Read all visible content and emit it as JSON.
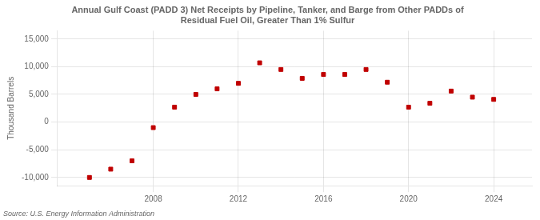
{
  "chart_data": {
    "type": "scatter",
    "title": [
      "Annual Gulf Coast (PADD 3) Net Receipts by Pipeline, Tanker, and Barge from Other PADDs of",
      "Residual Fuel Oil, Greater Than 1% Sulfur"
    ],
    "ylabel": "Thousand Barrels",
    "annotations": [
      "Source: U.S. Energy Information Administration"
    ],
    "x": [
      2005,
      2006,
      2007,
      2008,
      2009,
      2010,
      2011,
      2012,
      2013,
      2014,
      2015,
      2016,
      2017,
      2018,
      2019,
      2020,
      2021,
      2022,
      2023,
      2024
    ],
    "values": [
      -10000,
      -8500,
      -7000,
      -1000,
      2700,
      5000,
      6000,
      7000,
      10700,
      9500,
      7900,
      8600,
      8600,
      9500,
      7200,
      2700,
      3400,
      5600,
      4500,
      4100
    ],
    "color": "#c00000",
    "marker": "square",
    "xlim": [
      2003.5,
      2025.8
    ],
    "xticks": [
      2008,
      2012,
      2016,
      2020,
      2024
    ],
    "ylim": [
      -11500,
      16500
    ],
    "yticks": [
      {
        "value": -10000,
        "label": "-10,000"
      },
      {
        "value": -5000,
        "label": "-5,000"
      },
      0,
      {
        "value": 5000,
        "label": "5,000"
      },
      {
        "value": 10000,
        "label": "10,000"
      },
      {
        "value": 15000,
        "label": "15,000"
      }
    ],
    "grid": true
  }
}
